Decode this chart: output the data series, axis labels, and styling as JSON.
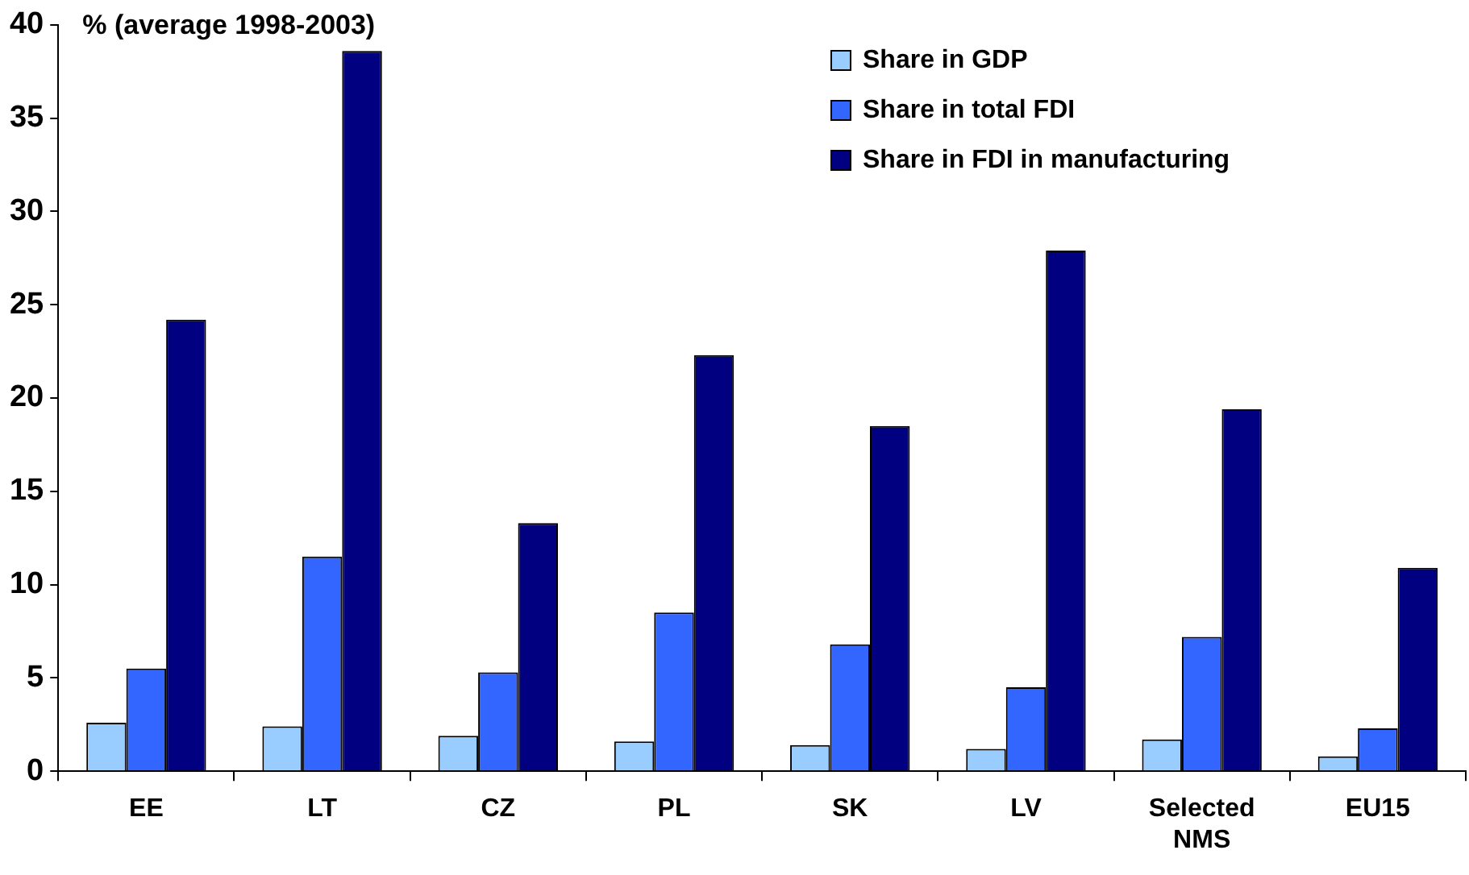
{
  "chart_data": {
    "type": "bar",
    "ylabel": "% (average 1998-2003)",
    "categories": [
      "EE",
      "LT",
      "CZ",
      "PL",
      "SK",
      "LV",
      "Selected NMS",
      "EU15"
    ],
    "series": [
      {
        "name": "Share in GDP",
        "color": "#99ccff",
        "values": [
          2.6,
          2.4,
          1.9,
          1.6,
          1.4,
          1.2,
          1.7,
          0.8
        ]
      },
      {
        "name": "Share in total FDI",
        "color": "#3366ff",
        "values": [
          5.5,
          11.5,
          5.3,
          8.5,
          6.8,
          4.5,
          7.2,
          2.3
        ]
      },
      {
        "name": "Share in FDI in manufacturing",
        "color": "#000080",
        "values": [
          24.2,
          38.6,
          13.3,
          22.3,
          18.5,
          27.9,
          19.4,
          10.9
        ]
      }
    ],
    "ylim": [
      0,
      40
    ],
    "yticks": [
      0,
      5,
      10,
      15,
      20,
      25,
      30,
      35,
      40
    ],
    "grid": false,
    "legend": "top right"
  }
}
